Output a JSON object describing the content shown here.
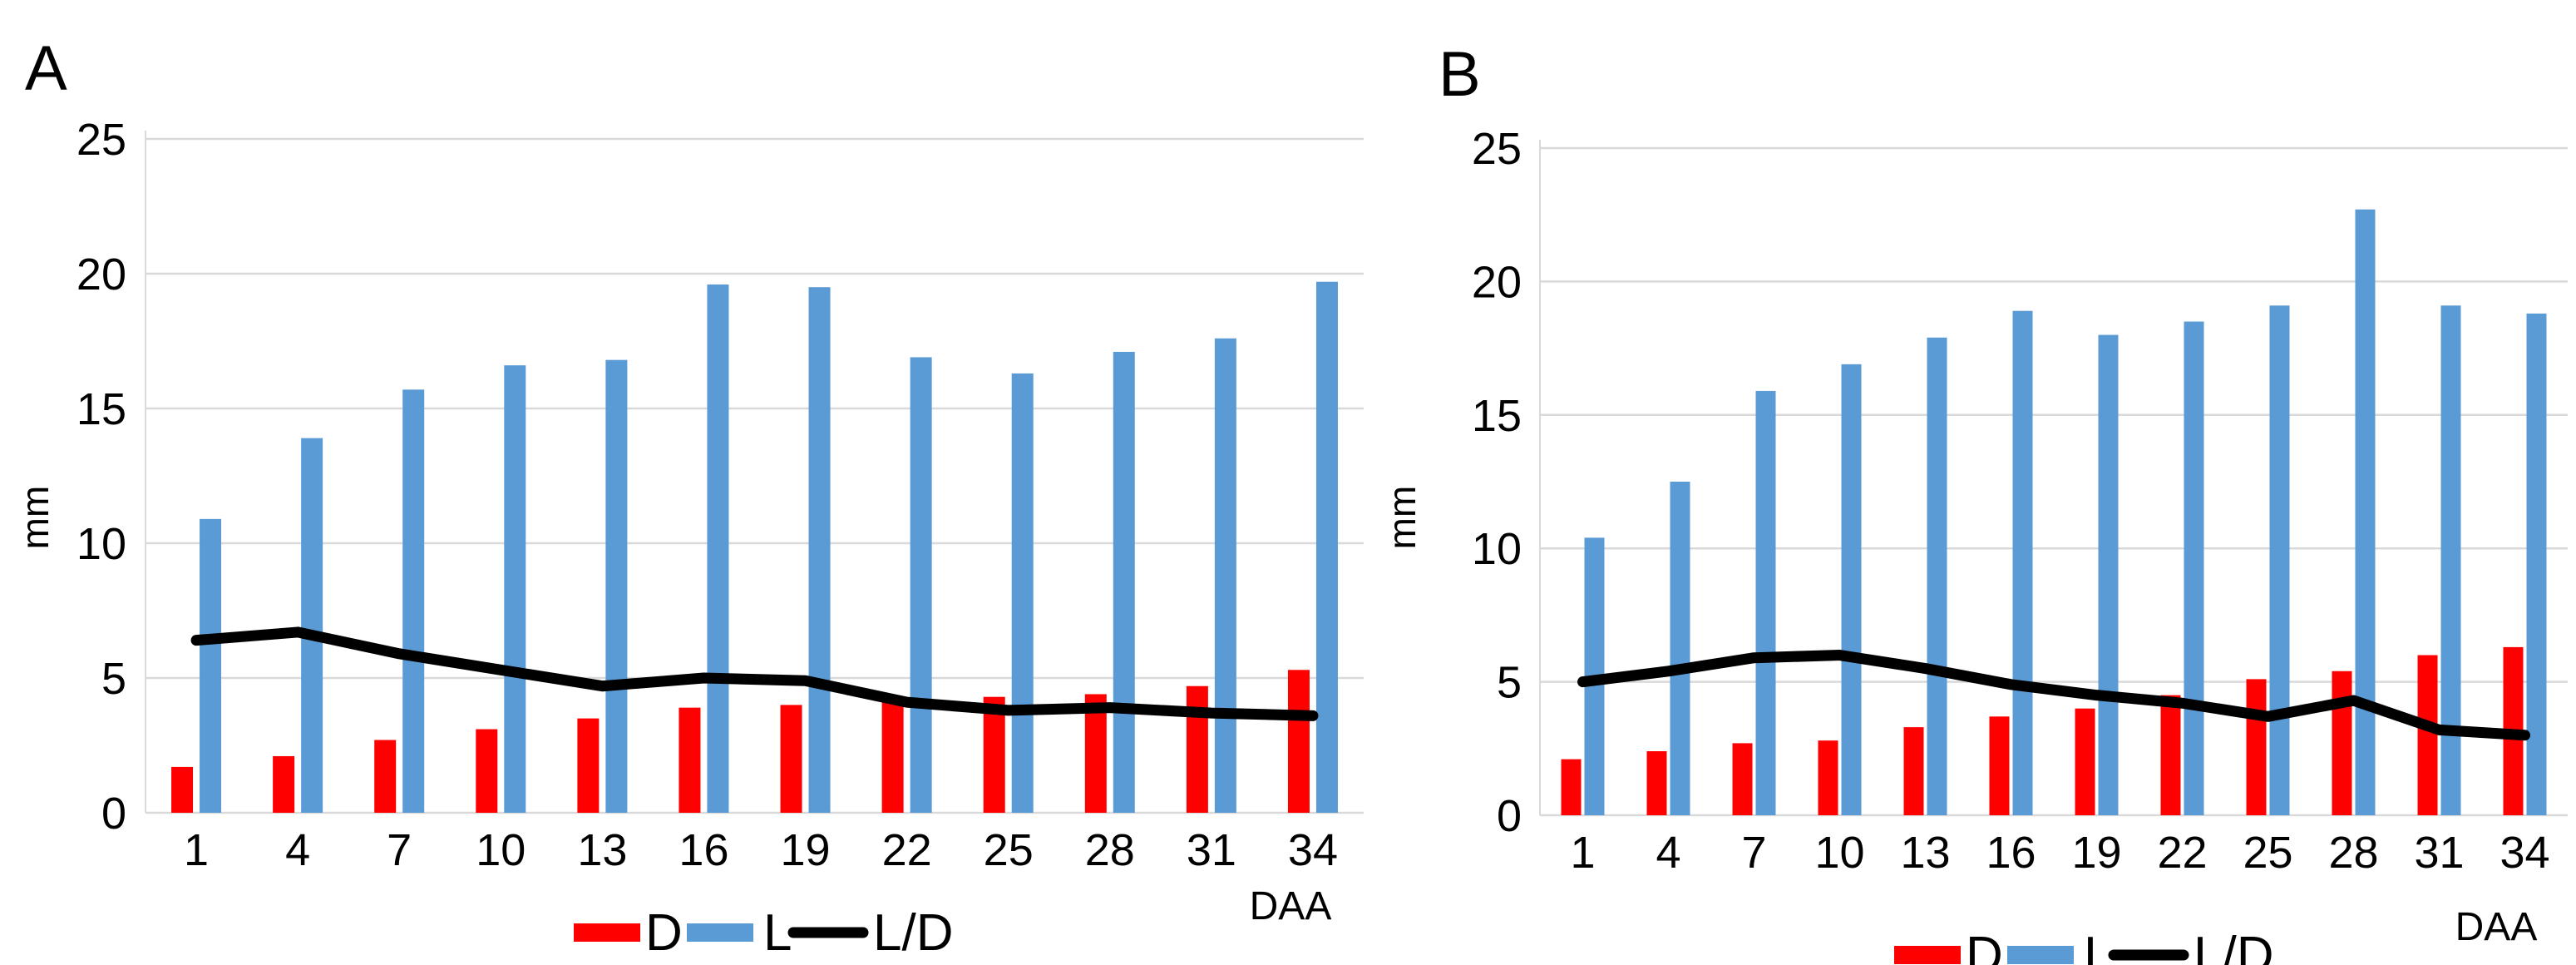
{
  "figure": {
    "background": "#ffffff",
    "panels": [
      "A",
      "B"
    ]
  },
  "colors": {
    "bar_d": "#ff0000",
    "bar_l": "#5b9bd5",
    "line_ld": "#000000",
    "gridline": "#d9d9d9",
    "text": "#000000"
  },
  "legend": {
    "items": [
      {
        "label": "D",
        "type": "bar",
        "color": "#ff0000"
      },
      {
        "label": "L",
        "type": "bar",
        "color": "#5b9bd5"
      },
      {
        "label": "L/D",
        "type": "line",
        "color": "#000000"
      }
    ]
  },
  "chart_data": [
    {
      "type": "bar+line",
      "title": "A",
      "categories": [
        1,
        4,
        7,
        10,
        13,
        16,
        19,
        22,
        25,
        28,
        31,
        34
      ],
      "series": [
        {
          "name": "D",
          "type": "bar",
          "color": "#ff0000",
          "values": [
            1.7,
            2.1,
            2.7,
            3.1,
            3.5,
            3.9,
            4.0,
            4.1,
            4.3,
            4.4,
            4.7,
            5.3
          ]
        },
        {
          "name": "L",
          "type": "bar",
          "color": "#5b9bd5",
          "values": [
            10.9,
            13.9,
            15.7,
            16.6,
            16.8,
            19.6,
            19.5,
            16.9,
            16.3,
            17.1,
            17.6,
            19.7
          ]
        },
        {
          "name": "L/D",
          "type": "line",
          "color": "#000000",
          "values": [
            6.4,
            6.7,
            5.9,
            5.3,
            4.7,
            5.0,
            4.9,
            4.1,
            3.8,
            3.9,
            3.7,
            3.6
          ]
        }
      ],
      "xlabel": "DAA",
      "ylabel": "mm",
      "ylim": [
        0,
        25
      ],
      "yticks": [
        0,
        5,
        10,
        15,
        20,
        25
      ],
      "grid": true,
      "legend_position": "bottom"
    },
    {
      "type": "bar+line",
      "title": "B",
      "categories": [
        1,
        4,
        7,
        10,
        13,
        16,
        19,
        22,
        25,
        28,
        31,
        34
      ],
      "series": [
        {
          "name": "D",
          "type": "bar",
          "color": "#ff0000",
          "values": [
            2.1,
            2.4,
            2.7,
            2.8,
            3.3,
            3.7,
            4.0,
            4.5,
            5.1,
            5.4,
            6.0,
            6.3
          ]
        },
        {
          "name": "L",
          "type": "bar",
          "color": "#5b9bd5",
          "values": [
            10.4,
            12.5,
            15.9,
            16.9,
            17.9,
            18.9,
            18.0,
            18.5,
            19.1,
            22.7,
            19.1,
            18.8
          ]
        },
        {
          "name": "L/D",
          "type": "line",
          "color": "#000000",
          "values": [
            5.0,
            5.4,
            5.9,
            6.0,
            5.5,
            4.9,
            4.5,
            4.2,
            3.7,
            4.3,
            3.2,
            3.0
          ]
        }
      ],
      "xlabel": "DAA",
      "ylabel": "mm",
      "ylim": [
        0,
        25
      ],
      "yticks": [
        0,
        5,
        10,
        15,
        20,
        25
      ],
      "grid": true,
      "legend_position": "bottom"
    }
  ]
}
